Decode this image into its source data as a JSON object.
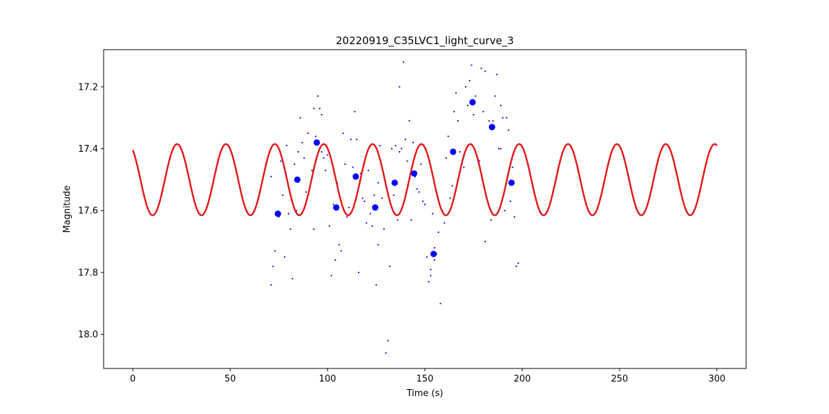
{
  "chart_data": {
    "type": "scatter",
    "title": "20220919_C35LVC1_light_curve_3",
    "xlabel": "Time (s)",
    "ylabel": "Magnitude",
    "xlim": [
      -15,
      315
    ],
    "ylim": [
      18.11,
      17.08
    ],
    "y_inverted": true,
    "grid": false,
    "x_ticks": [
      0,
      50,
      100,
      150,
      200,
      250,
      300
    ],
    "y_ticks": [
      17.2,
      17.4,
      17.6,
      17.8,
      18.0
    ],
    "series": [
      {
        "kind": "scatter-small",
        "color": "#0000ff",
        "points": [
          [
            71,
            17.49
          ],
          [
            71,
            17.84
          ],
          [
            72,
            17.78
          ],
          [
            73,
            17.73
          ],
          [
            75,
            17.62
          ],
          [
            76,
            17.44
          ],
          [
            77,
            17.55
          ],
          [
            78,
            17.75
          ],
          [
            79,
            17.39
          ],
          [
            80,
            17.61
          ],
          [
            81,
            17.66
          ],
          [
            82,
            17.82
          ],
          [
            83,
            17.45
          ],
          [
            84,
            17.6
          ],
          [
            85,
            17.41
          ],
          [
            86,
            17.3
          ],
          [
            87,
            17.38
          ],
          [
            88,
            17.43
          ],
          [
            89,
            17.54
          ],
          [
            90,
            17.35
          ],
          [
            92,
            17.47
          ],
          [
            93,
            17.66
          ],
          [
            93,
            17.27
          ],
          [
            94,
            17.36
          ],
          [
            95,
            17.23
          ],
          [
            96,
            17.27
          ],
          [
            97,
            17.29
          ],
          [
            97,
            17.41
          ],
          [
            98,
            17.43
          ],
          [
            99,
            17.47
          ],
          [
            100,
            17.42
          ],
          [
            101,
            17.65
          ],
          [
            102,
            17.81
          ],
          [
            103,
            17.58
          ],
          [
            104,
            17.76
          ],
          [
            105,
            17.51
          ],
          [
            106,
            17.71
          ],
          [
            107,
            17.73
          ],
          [
            108,
            17.35
          ],
          [
            109,
            17.45
          ],
          [
            110,
            17.62
          ],
          [
            111,
            17.59
          ],
          [
            112,
            17.37
          ],
          [
            113,
            17.46
          ],
          [
            114,
            17.28
          ],
          [
            115,
            17.37
          ],
          [
            116,
            17.8
          ],
          [
            117,
            17.48
          ],
          [
            118,
            17.56
          ],
          [
            119,
            17.57
          ],
          [
            120,
            17.64
          ],
          [
            121,
            17.47
          ],
          [
            122,
            17.61
          ],
          [
            123,
            17.65
          ],
          [
            124,
            17.55
          ],
          [
            125,
            17.84
          ],
          [
            126,
            17.51
          ],
          [
            126,
            17.71
          ],
          [
            127,
            17.39
          ],
          [
            128,
            17.56
          ],
          [
            129,
            17.66
          ],
          [
            130,
            18.06
          ],
          [
            131,
            18.02
          ],
          [
            132,
            17.78
          ],
          [
            133,
            17.4
          ],
          [
            134,
            17.55
          ],
          [
            135,
            17.39
          ],
          [
            136,
            17.63
          ],
          [
            137,
            17.41
          ],
          [
            137,
            17.2
          ],
          [
            138,
            17.4
          ],
          [
            139,
            17.12
          ],
          [
            140,
            17.37
          ],
          [
            141,
            17.44
          ],
          [
            142,
            17.31
          ],
          [
            143,
            17.63
          ],
          [
            144,
            17.38
          ],
          [
            145,
            17.49
          ],
          [
            146,
            17.53
          ],
          [
            147,
            17.54
          ],
          [
            148,
            17.45
          ],
          [
            149,
            17.57
          ],
          [
            150,
            17.58
          ],
          [
            151,
            17.75
          ],
          [
            152,
            17.83
          ],
          [
            153,
            17.79
          ],
          [
            153,
            17.81
          ],
          [
            154,
            17.61
          ],
          [
            155,
            17.76
          ],
          [
            155,
            17.72
          ],
          [
            156,
            17.74
          ],
          [
            157,
            17.67
          ],
          [
            158,
            17.9
          ],
          [
            159,
            17.6
          ],
          [
            160,
            17.64
          ],
          [
            161,
            17.43
          ],
          [
            162,
            17.36
          ],
          [
            163,
            17.56
          ],
          [
            164,
            17.52
          ],
          [
            165,
            17.28
          ],
          [
            166,
            17.22
          ],
          [
            167,
            17.31
          ],
          [
            168,
            17.41
          ],
          [
            170,
            17.46
          ],
          [
            171,
            17.2
          ],
          [
            172,
            17.26
          ],
          [
            173,
            17.18
          ],
          [
            174,
            17.13
          ],
          [
            175,
            17.29
          ],
          [
            176,
            17.23
          ],
          [
            177,
            17.43
          ],
          [
            178,
            17.44
          ],
          [
            179,
            17.14
          ],
          [
            180,
            17.28
          ],
          [
            181,
            17.7
          ],
          [
            181,
            17.15
          ],
          [
            183,
            17.31
          ],
          [
            184,
            17.63
          ],
          [
            185,
            17.31
          ],
          [
            186,
            17.23
          ],
          [
            187,
            17.16
          ],
          [
            188,
            17.4
          ],
          [
            189,
            17.26
          ],
          [
            189,
            17.4
          ],
          [
            190,
            17.3
          ],
          [
            191,
            17.6
          ],
          [
            192,
            17.3
          ],
          [
            193,
            17.34
          ],
          [
            194,
            17.57
          ],
          [
            195,
            17.46
          ],
          [
            196,
            17.62
          ],
          [
            197,
            17.78
          ],
          [
            198,
            17.77
          ]
        ]
      },
      {
        "kind": "scatter-large",
        "color": "#0000ff",
        "points": [
          [
            74.5,
            17.61
          ],
          [
            84.5,
            17.5
          ],
          [
            94.5,
            17.38
          ],
          [
            104.5,
            17.59
          ],
          [
            114.5,
            17.49
          ],
          [
            124.5,
            17.59
          ],
          [
            134.5,
            17.51
          ],
          [
            144.5,
            17.48
          ],
          [
            154.5,
            17.74
          ],
          [
            164.5,
            17.41
          ],
          [
            174.5,
            17.25
          ],
          [
            184.5,
            17.33
          ],
          [
            194.5,
            17.51
          ]
        ]
      },
      {
        "kind": "line",
        "color": "#e31a1c",
        "model": {
          "mean": 17.5,
          "amplitude": 0.115,
          "period": 25.1,
          "phase_offset": -0.98,
          "x_range": [
            0,
            300
          ]
        }
      }
    ]
  }
}
